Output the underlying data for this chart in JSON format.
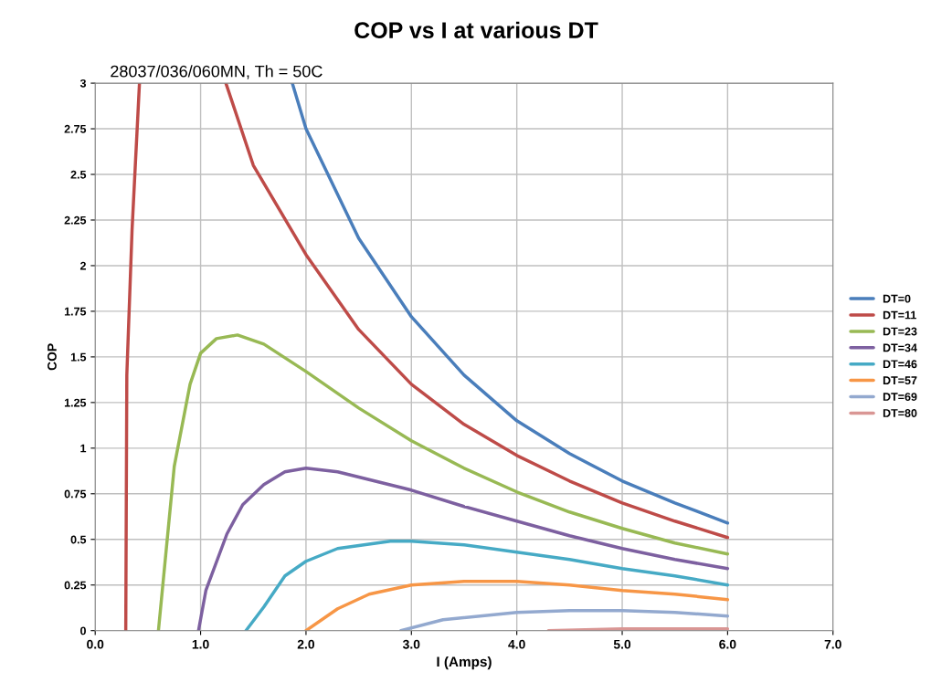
{
  "chart_data": {
    "type": "line",
    "title": "COP vs I at various DT",
    "subtitle": "28037/036/060MN, Th = 50C",
    "xlabel": "I (Amps)",
    "ylabel": "COP",
    "xlim": [
      0,
      7
    ],
    "ylim": [
      0,
      3
    ],
    "xticks": [
      {
        "value": 0,
        "label": "0.0"
      },
      {
        "value": 1,
        "label": "1.0"
      },
      {
        "value": 2,
        "label": "2.0"
      },
      {
        "value": 3,
        "label": "3.0"
      },
      {
        "value": 4,
        "label": "4.0"
      },
      {
        "value": 5,
        "label": "5.0"
      },
      {
        "value": 6,
        "label": "6.0"
      },
      {
        "value": 7,
        "label": "7.0"
      }
    ],
    "yticks": [
      0,
      0.25,
      0.5,
      0.75,
      1,
      1.25,
      1.5,
      1.75,
      2,
      2.25,
      2.5,
      2.75,
      3
    ],
    "grid": true,
    "legend": "right",
    "marker": "none",
    "line_style": "solid",
    "series": [
      {
        "name": "DT=0",
        "color": "#4a7ebb",
        "x": [
          1.87,
          2.0,
          2.5,
          3.0,
          3.5,
          4.0,
          4.5,
          5.0,
          5.5,
          6.0
        ],
        "values": [
          3.0,
          2.75,
          2.15,
          1.72,
          1.4,
          1.15,
          0.97,
          0.82,
          0.7,
          0.59
        ]
      },
      {
        "name": "DT=11",
        "color": "#be4b48",
        "x": [
          0.29,
          0.3,
          0.35,
          0.42,
          0.8,
          1.24,
          1.5,
          2.0,
          2.5,
          3.0,
          3.5,
          4.0,
          4.5,
          5.0,
          5.5,
          6.0
        ],
        "values": [
          0,
          1.4,
          2.2,
          3.0,
          null,
          3.0,
          2.55,
          2.06,
          1.65,
          1.35,
          1.13,
          0.96,
          0.82,
          0.7,
          0.6,
          0.51
        ]
      },
      {
        "name": "DT=23",
        "color": "#98b954",
        "x": [
          0.6,
          0.75,
          0.9,
          1.0,
          1.15,
          1.35,
          1.6,
          2.0,
          2.5,
          3.0,
          3.5,
          4.0,
          4.5,
          5.0,
          5.5,
          6.0
        ],
        "values": [
          0,
          0.9,
          1.35,
          1.52,
          1.6,
          1.62,
          1.57,
          1.42,
          1.22,
          1.04,
          0.89,
          0.76,
          0.65,
          0.56,
          0.48,
          0.42
        ]
      },
      {
        "name": "DT=34",
        "color": "#7d60a0",
        "x": [
          0.98,
          1.05,
          1.25,
          1.4,
          1.6,
          1.8,
          2.0,
          2.3,
          3.0,
          3.5,
          4.0,
          4.5,
          5.0,
          5.5,
          6.0
        ],
        "values": [
          0,
          0.22,
          0.53,
          0.69,
          0.8,
          0.87,
          0.89,
          0.87,
          0.77,
          0.68,
          0.6,
          0.52,
          0.45,
          0.39,
          0.34
        ]
      },
      {
        "name": "DT=46",
        "color": "#46aac5",
        "x": [
          1.43,
          1.6,
          1.8,
          2.0,
          2.3,
          2.8,
          3.0,
          3.5,
          4.0,
          4.5,
          5.0,
          5.5,
          6.0
        ],
        "values": [
          0,
          0.13,
          0.3,
          0.38,
          0.45,
          0.49,
          0.49,
          0.47,
          0.43,
          0.39,
          0.34,
          0.3,
          0.25
        ]
      },
      {
        "name": "DT=57",
        "color": "#f79646",
        "x": [
          2.0,
          2.3,
          2.6,
          3.0,
          3.5,
          4.0,
          4.5,
          5.0,
          5.5,
          6.0
        ],
        "values": [
          0,
          0.12,
          0.2,
          0.25,
          0.27,
          0.27,
          0.25,
          0.22,
          0.2,
          0.17
        ]
      },
      {
        "name": "DT=69",
        "color": "#93a9cf",
        "x": [
          2.9,
          3.3,
          4.0,
          4.5,
          5.0,
          5.5,
          6.0
        ],
        "values": [
          0,
          0.06,
          0.1,
          0.11,
          0.11,
          0.1,
          0.08
        ]
      },
      {
        "name": "DT=80",
        "color": "#d99694",
        "x": [
          4.3,
          5.0,
          6.0
        ],
        "values": [
          0,
          0.01,
          0.01
        ]
      }
    ]
  }
}
